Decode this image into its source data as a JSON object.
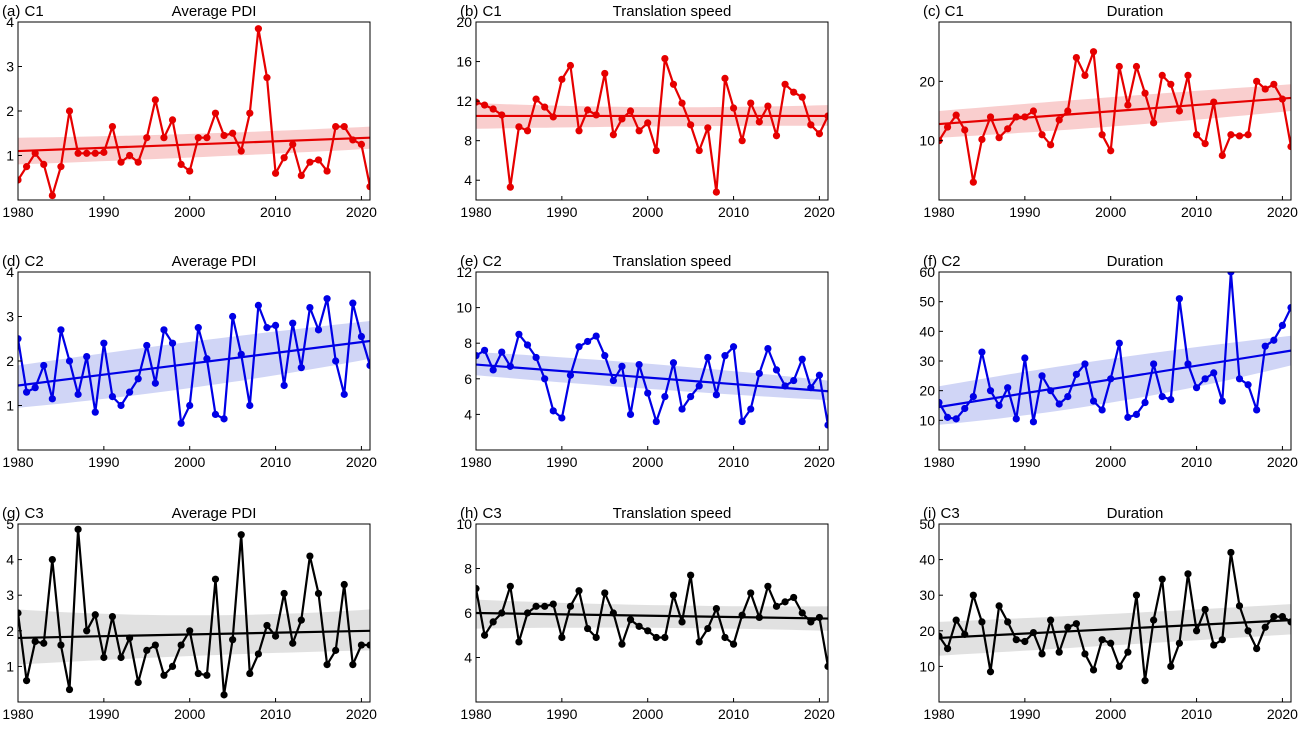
{
  "figure": {
    "background": "#ffffff"
  },
  "chart_data": [
    {
      "type": "line",
      "panel_label": "(a) C1",
      "title": "Average PDI",
      "color": "#e60000",
      "band_color": "#f4a6a6",
      "xlim": [
        1980,
        2021
      ],
      "ylim": [
        0,
        4
      ],
      "xticks": [
        1980,
        1990,
        2000,
        2010,
        2020
      ],
      "yticks": [
        1,
        2,
        3,
        4
      ],
      "x_start": 1980,
      "values": [
        0.45,
        0.75,
        1.05,
        0.8,
        0.1,
        0.75,
        2.0,
        1.05,
        1.05,
        1.05,
        1.07,
        1.65,
        0.85,
        1.0,
        0.85,
        1.4,
        2.25,
        1.4,
        1.8,
        0.8,
        0.65,
        1.4,
        1.4,
        1.95,
        1.45,
        1.5,
        1.1,
        1.95,
        3.85,
        2.75,
        0.6,
        0.95,
        1.25,
        0.55,
        0.85,
        0.9,
        0.65,
        1.65,
        1.65,
        1.35,
        1.25,
        0.3
      ],
      "trend": [
        1.1,
        1.4
      ],
      "band": {
        "lower": [
          0.8,
          1.15
        ],
        "mid": [
          1.05,
          1.25
        ],
        "upper": [
          1.4,
          1.65
        ]
      }
    },
    {
      "type": "line",
      "panel_label": "(b) C1",
      "title": "Translation speed",
      "color": "#e60000",
      "band_color": "#f4a6a6",
      "xlim": [
        1980,
        2021
      ],
      "ylim": [
        2,
        20
      ],
      "xticks": [
        1980,
        1990,
        2000,
        2010,
        2020
      ],
      "yticks": [
        4,
        8,
        12,
        16,
        20
      ],
      "x_start": 1980,
      "values": [
        11.9,
        11.6,
        11.2,
        10.6,
        3.3,
        9.4,
        9.0,
        12.2,
        11.4,
        10.4,
        14.2,
        15.6,
        9.0,
        11.1,
        10.6,
        14.8,
        8.6,
        10.2,
        11.0,
        9.0,
        9.8,
        7.0,
        16.3,
        13.7,
        11.8,
        9.6,
        7.0,
        9.3,
        2.8,
        14.3,
        11.3,
        8.0,
        11.8,
        9.9,
        11.5,
        8.5,
        13.7,
        12.9,
        12.4,
        9.6,
        8.7,
        10.5
      ],
      "trend": [
        10.5,
        10.5
      ],
      "band": {
        "lower": [
          9.2,
          9.5
        ],
        "mid": [
          10.0,
          10.0
        ],
        "upper": [
          11.8,
          11.6
        ]
      }
    },
    {
      "type": "line",
      "panel_label": "(c) C1",
      "title": "Duration",
      "color": "#e60000",
      "band_color": "#f4a6a6",
      "xlim": [
        1980,
        2021
      ],
      "ylim": [
        0,
        30
      ],
      "xticks": [
        1980,
        1990,
        2000,
        2010,
        2020
      ],
      "yticks": [
        10,
        20
      ],
      "x_start": 1980,
      "values": [
        10.0,
        12.3,
        14.3,
        11.8,
        3.0,
        10.2,
        14.0,
        10.5,
        12.0,
        14.0,
        14.0,
        15.0,
        11.0,
        9.3,
        13.5,
        15.0,
        24.0,
        21.0,
        25.0,
        11.0,
        8.3,
        22.5,
        16.0,
        22.5,
        18.0,
        13.0,
        21.0,
        19.5,
        15.0,
        21.0,
        11.0,
        9.5,
        16.5,
        7.5,
        11.0,
        10.8,
        11.0,
        20.0,
        18.7,
        19.5,
        17.0,
        9.0
      ],
      "trend": [
        12.8,
        17.2
      ],
      "band": {
        "lower": [
          10.5,
          15.0
        ],
        "mid": [
          12.5,
          16.5
        ],
        "upper": [
          15.0,
          19.5
        ]
      }
    },
    {
      "type": "line",
      "panel_label": "(d) C2",
      "title": "Average PDI",
      "color": "#0000e6",
      "band_color": "#a9b2ee",
      "xlim": [
        1980,
        2021
      ],
      "ylim": [
        0,
        4
      ],
      "xticks": [
        1980,
        1990,
        2000,
        2010,
        2020
      ],
      "yticks": [
        1,
        2,
        3,
        4
      ],
      "x_start": 1980,
      "values": [
        2.5,
        1.3,
        1.4,
        1.9,
        1.15,
        2.7,
        2.0,
        1.25,
        2.1,
        0.85,
        2.4,
        1.2,
        1.0,
        1.3,
        1.6,
        2.35,
        1.5,
        2.7,
        2.4,
        0.6,
        1.0,
        2.75,
        2.05,
        0.8,
        0.7,
        3.0,
        2.15,
        1.0,
        3.25,
        2.75,
        2.8,
        1.45,
        2.85,
        1.85,
        3.2,
        2.7,
        3.4,
        2.0,
        1.25,
        3.3,
        2.55,
        1.9
      ],
      "trend": [
        1.45,
        2.45
      ],
      "band": {
        "lower": [
          0.95,
          2.05
        ],
        "mid": [
          1.45,
          2.25
        ],
        "upper": [
          1.9,
          2.9
        ]
      }
    },
    {
      "type": "line",
      "panel_label": "(e) C2",
      "title": "Translation speed",
      "color": "#0000e6",
      "band_color": "#a9b2ee",
      "xlim": [
        1980,
        2021
      ],
      "ylim": [
        2,
        12
      ],
      "xticks": [
        1980,
        1990,
        2000,
        2010,
        2020
      ],
      "yticks": [
        4,
        6,
        8,
        10,
        12
      ],
      "x_start": 1980,
      "values": [
        7.3,
        7.6,
        6.5,
        7.5,
        6.7,
        8.5,
        7.9,
        7.2,
        6.0,
        4.2,
        3.8,
        6.2,
        7.8,
        8.1,
        8.4,
        7.3,
        5.9,
        6.7,
        4.0,
        6.8,
        5.2,
        3.6,
        5.0,
        6.9,
        4.3,
        5.0,
        5.6,
        7.2,
        5.1,
        7.3,
        7.8,
        3.6,
        4.3,
        6.3,
        7.7,
        6.5,
        5.6,
        5.9,
        7.1,
        5.5,
        6.2,
        3.4
      ],
      "trend": [
        6.8,
        5.3
      ],
      "band": {
        "lower": [
          6.2,
          4.8
        ],
        "mid": [
          6.8,
          5.5
        ],
        "upper": [
          7.5,
          5.9
        ]
      }
    },
    {
      "type": "line",
      "panel_label": "(f) C2",
      "title": "Duration",
      "color": "#0000e6",
      "band_color": "#a9b2ee",
      "xlim": [
        1980,
        2021
      ],
      "ylim": [
        0,
        60
      ],
      "xticks": [
        1980,
        1990,
        2000,
        2010,
        2020
      ],
      "yticks": [
        10,
        20,
        30,
        40,
        50,
        60
      ],
      "x_start": 1980,
      "values": [
        16,
        11,
        10.5,
        14,
        18,
        33,
        20,
        15,
        21,
        10.5,
        31,
        9.5,
        25,
        20,
        15.5,
        18,
        25.5,
        29,
        16.5,
        13.5,
        24,
        36,
        11,
        12,
        16,
        29,
        18,
        17,
        51,
        29,
        21,
        24,
        26,
        16.5,
        60,
        24,
        22,
        13.5,
        35,
        37,
        42,
        48
      ],
      "trend": [
        14.5,
        33.5
      ],
      "band": {
        "lower": [
          8.5,
          28.5
        ],
        "mid": [
          14.0,
          30.0
        ],
        "upper": [
          21.5,
          38.5
        ]
      }
    },
    {
      "type": "line",
      "panel_label": "(g) C3",
      "title": "Average PDI",
      "color": "#000000",
      "band_color": "#c8c8c8",
      "xlim": [
        1980,
        2021
      ],
      "ylim": [
        0,
        5
      ],
      "xticks": [
        1980,
        1990,
        2000,
        2010,
        2020
      ],
      "yticks": [
        1,
        2,
        3,
        4,
        5
      ],
      "x_start": 1980,
      "values": [
        2.5,
        0.6,
        1.7,
        1.65,
        4.0,
        1.6,
        0.35,
        4.85,
        2.0,
        2.45,
        1.25,
        2.4,
        1.25,
        1.8,
        0.55,
        1.45,
        1.6,
        0.75,
        1.0,
        1.6,
        2.0,
        0.8,
        0.75,
        3.45,
        0.2,
        1.75,
        4.7,
        0.8,
        1.35,
        2.15,
        1.85,
        3.05,
        1.65,
        2.3,
        4.1,
        3.05,
        1.05,
        1.45,
        3.3,
        1.05,
        1.6,
        1.6
      ],
      "trend": [
        1.8,
        2.0
      ],
      "band": {
        "lower": [
          1.05,
          1.45
        ],
        "mid": [
          1.75,
          1.8
        ],
        "upper": [
          2.6,
          2.6
        ]
      }
    },
    {
      "type": "line",
      "panel_label": "(h) C3",
      "title": "Translation speed",
      "color": "#000000",
      "band_color": "#c8c8c8",
      "xlim": [
        1980,
        2021
      ],
      "ylim": [
        2,
        10
      ],
      "xticks": [
        1980,
        1990,
        2000,
        2010,
        2020
      ],
      "yticks": [
        4,
        6,
        8,
        10
      ],
      "x_start": 1980,
      "values": [
        7.1,
        5.0,
        5.6,
        6.0,
        7.2,
        4.7,
        6.0,
        6.3,
        6.3,
        6.4,
        4.9,
        6.3,
        7.0,
        5.3,
        4.9,
        6.9,
        6.0,
        4.6,
        5.7,
        5.4,
        5.2,
        4.9,
        4.9,
        6.8,
        5.6,
        7.7,
        4.7,
        5.3,
        6.2,
        4.9,
        4.6,
        5.9,
        6.9,
        5.8,
        7.2,
        6.3,
        6.5,
        6.7,
        6.0,
        5.6,
        5.8,
        3.6
      ],
      "trend": [
        6.0,
        5.75
      ],
      "band": {
        "lower": [
          5.3,
          5.2
        ],
        "mid": [
          5.95,
          5.55
        ],
        "upper": [
          6.6,
          6.3
        ]
      }
    },
    {
      "type": "line",
      "panel_label": "(i) C3",
      "title": "Duration",
      "color": "#000000",
      "band_color": "#c8c8c8",
      "xlim": [
        1980,
        2021
      ],
      "ylim": [
        0,
        50
      ],
      "xticks": [
        1980,
        1990,
        2000,
        2010,
        2020
      ],
      "yticks": [
        10,
        20,
        30,
        40,
        50
      ],
      "x_start": 1980,
      "values": [
        18.5,
        15.0,
        23.0,
        19.0,
        30.0,
        22.5,
        8.5,
        27.0,
        22.5,
        17.5,
        17.0,
        19.5,
        13.5,
        23.0,
        14.0,
        21.0,
        22.0,
        13.5,
        9.0,
        17.5,
        16.5,
        10.0,
        14.0,
        30.0,
        6.0,
        23.0,
        34.5,
        10.0,
        16.5,
        36.0,
        20.0,
        26.0,
        16.0,
        17.5,
        42.0,
        27.0,
        20.0,
        15.0,
        21.0,
        24.0,
        24.0,
        22.5
      ],
      "trend": [
        18.0,
        23.0
      ],
      "band": {
        "lower": [
          13.0,
          19.0
        ],
        "mid": [
          18.0,
          22.5
        ],
        "upper": [
          22.5,
          27.5
        ]
      }
    }
  ]
}
